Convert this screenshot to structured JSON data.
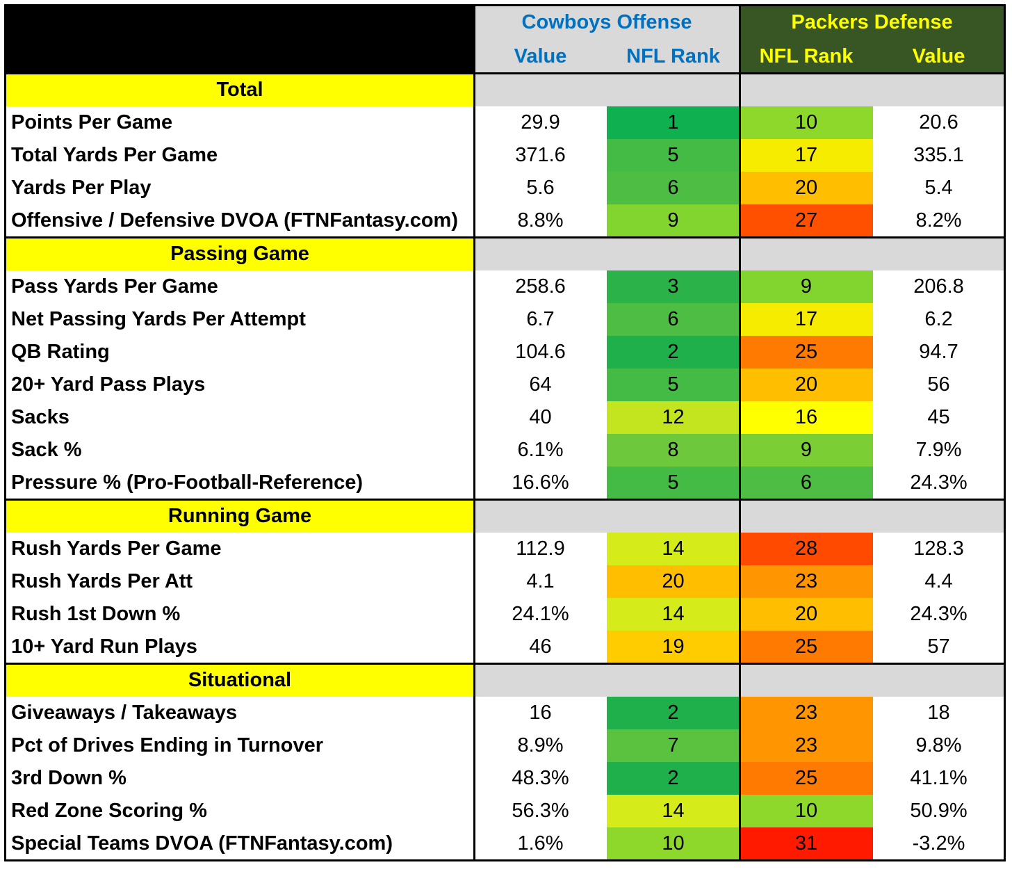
{
  "header": {
    "cowboys_title": "Cowboys Offense",
    "packers_title": "Packers Defense",
    "col_value": "Value",
    "col_rank": "NFL Rank"
  },
  "colors": {
    "header_black": "#000000",
    "header_gray": "#d9d9d9",
    "header_green": "#375623",
    "cowboys_blue": "#0070c0",
    "packers_gold": "#ffff00",
    "section_yellow": "#ffff00",
    "section_gray": "#d9d9d9"
  },
  "chart_data": {
    "type": "table",
    "sections": [
      {
        "name": "Total",
        "rows": [
          {
            "label": "Points Per Game",
            "off_value": "29.9",
            "off_rank": "1",
            "def_rank": "10",
            "def_value": "20.6",
            "off_color": "#0fb04f",
            "def_color": "#8ed82c"
          },
          {
            "label": "Total Yards Per Game",
            "off_value": "371.6",
            "off_rank": "5",
            "def_rank": "17",
            "def_value": "335.1",
            "off_color": "#43bb45",
            "def_color": "#f5ec00"
          },
          {
            "label": "Yards Per Play",
            "off_value": "5.6",
            "off_rank": "6",
            "def_rank": "20",
            "def_value": "5.4",
            "off_color": "#4dbd44",
            "def_color": "#ffbf00"
          },
          {
            "label": "Offensive / Defensive DVOA (FTNFantasy.com)",
            "off_value": "8.8%",
            "off_rank": "9",
            "def_rank": "27",
            "def_value": "8.2%",
            "off_color": "#82d42e",
            "def_color": "#ff5000"
          }
        ]
      },
      {
        "name": "Passing Game",
        "rows": [
          {
            "label": "Pass Yards Per Game",
            "off_value": "258.6",
            "off_rank": "3",
            "def_rank": "9",
            "def_value": "206.8",
            "off_color": "#2bb34a",
            "def_color": "#82d42e"
          },
          {
            "label": "Net Passing Yards Per Attempt",
            "off_value": "6.7",
            "off_rank": "6",
            "def_rank": "17",
            "def_value": "6.2",
            "off_color": "#4dbd44",
            "def_color": "#f5ec00"
          },
          {
            "label": "QB Rating",
            "off_value": "104.6",
            "off_rank": "2",
            "def_rank": "25",
            "def_value": "94.7",
            "off_color": "#1faf4b",
            "def_color": "#ff7a00"
          },
          {
            "label": "20+ Yard Pass Plays",
            "off_value": "64",
            "off_rank": "5",
            "def_rank": "20",
            "def_value": "56",
            "off_color": "#43bb45",
            "def_color": "#ffbf00"
          },
          {
            "label": "Sacks",
            "off_value": "40",
            "off_rank": "12",
            "def_rank": "16",
            "def_value": "45",
            "off_color": "#c2e51f",
            "def_color": "#ffff00"
          },
          {
            "label": "Sack %",
            "off_value": "6.1%",
            "off_rank": "8",
            "def_rank": "9",
            "def_value": "7.9%",
            "off_color": "#6dc93b",
            "def_color": "#7bcf35"
          },
          {
            "label": "Pressure % (Pro-Football-Reference)",
            "off_value": "16.6%",
            "off_rank": "5",
            "def_rank": "6",
            "def_value": "24.3%",
            "off_color": "#43bb45",
            "def_color": "#4dbd44"
          }
        ]
      },
      {
        "name": "Running Game",
        "rows": [
          {
            "label": "Rush Yards Per Game",
            "off_value": "112.9",
            "off_rank": "14",
            "def_rank": "28",
            "def_value": "128.3",
            "off_color": "#d6ec1a",
            "def_color": "#ff4a00"
          },
          {
            "label": "Rush Yards Per Att",
            "off_value": "4.1",
            "off_rank": "20",
            "def_rank": "23",
            "def_value": "4.4",
            "off_color": "#ffbf00",
            "def_color": "#ff9500"
          },
          {
            "label": "Rush 1st Down %",
            "off_value": "24.1%",
            "off_rank": "14",
            "def_rank": "20",
            "def_value": "24.3%",
            "off_color": "#d6ec1a",
            "def_color": "#ffbf00"
          },
          {
            "label": "10+ Yard Run Plays",
            "off_value": "46",
            "off_rank": "19",
            "def_rank": "25",
            "def_value": "57",
            "off_color": "#ffcc00",
            "def_color": "#ff7a00"
          }
        ]
      },
      {
        "name": "Situational",
        "rows": [
          {
            "label": "Giveaways / Takeaways",
            "off_value": "16",
            "off_rank": "2",
            "def_rank": "23",
            "def_value": "18",
            "off_color": "#1faf4b",
            "def_color": "#ff9500"
          },
          {
            "label": "Pct of Drives Ending in Turnover",
            "off_value": "8.9%",
            "off_rank": "7",
            "def_rank": "23",
            "def_value": "9.8%",
            "off_color": "#5bc240",
            "def_color": "#ff9500"
          },
          {
            "label": "3rd Down %",
            "off_value": "48.3%",
            "off_rank": "2",
            "def_rank": "25",
            "def_value": "41.1%",
            "off_color": "#1faf4b",
            "def_color": "#ff7a00"
          },
          {
            "label": "Red Zone Scoring %",
            "off_value": "56.3%",
            "off_rank": "14",
            "def_rank": "10",
            "def_value": "50.9%",
            "off_color": "#d6ec1a",
            "def_color": "#8ed82c"
          },
          {
            "label": "Special Teams DVOA  (FTNFantasy.com)",
            "off_value": "1.6%",
            "off_rank": "10",
            "def_rank": "31",
            "def_value": "-3.2%",
            "off_color": "#8ed82c",
            "def_color": "#ff1a00"
          }
        ]
      }
    ]
  }
}
